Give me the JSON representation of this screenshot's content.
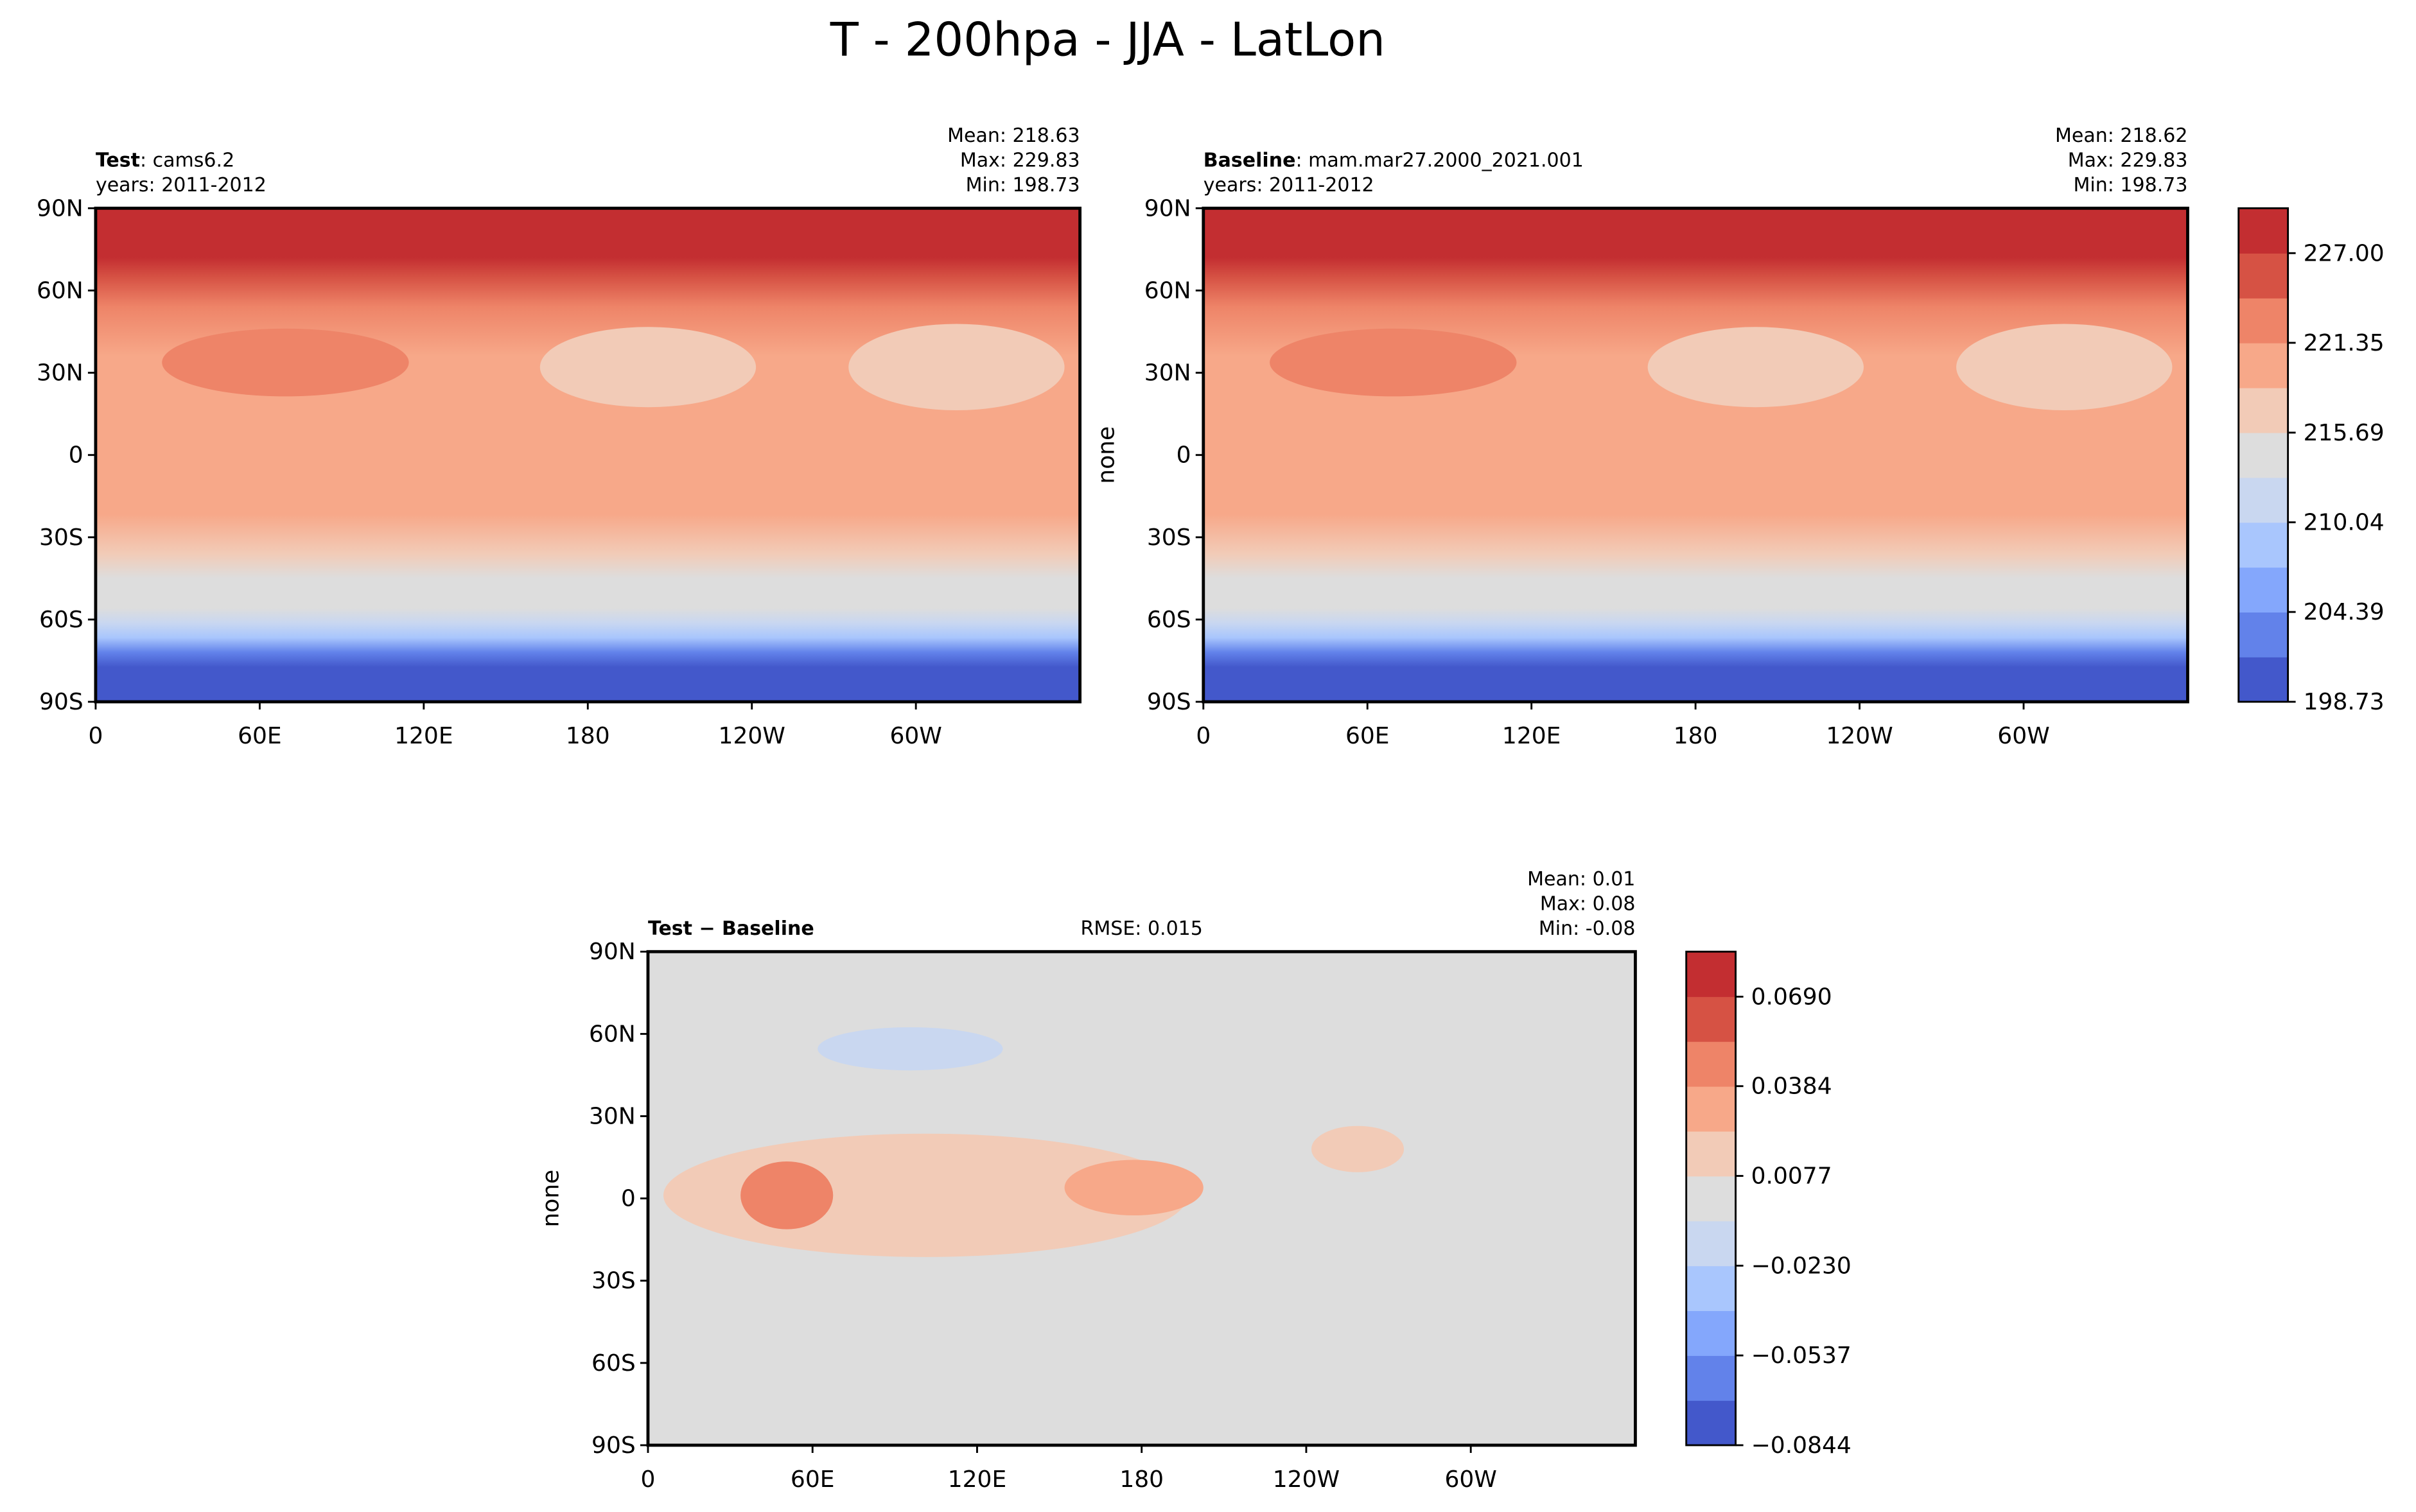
{
  "figure_title": "T - 200hpa - JJA - LatLon",
  "chart_data": [
    {
      "type": "contour",
      "title_bold": "Test",
      "title_rest": ": cams6.2",
      "subtitle": "years: 2011-2012",
      "stats": [
        "Mean: 218.63",
        "Max: 229.83",
        "Min: 198.73"
      ],
      "xlim": [
        0,
        360
      ],
      "xticks": [
        0,
        {
          "value": 60,
          "label": "60E"
        },
        {
          "value": 120,
          "label": "120E"
        },
        180,
        {
          "value": 240,
          "label": "120W"
        },
        {
          "value": 300,
          "label": "60W"
        }
      ],
      "ylim": [
        -90,
        90
      ],
      "yticks": [
        {
          "value": -90,
          "label": "90S"
        },
        {
          "value": -60,
          "label": "60S"
        },
        {
          "value": -30,
          "label": "30S"
        },
        0,
        {
          "value": 30,
          "label": "30N"
        },
        {
          "value": 60,
          "label": "60N"
        },
        {
          "value": 90,
          "label": "90N"
        }
      ]
    },
    {
      "type": "contour",
      "title_bold": "Baseline",
      "title_rest": ": mam.mar27.2000_2021.001",
      "subtitle": "years: 2011-2012",
      "stats": [
        "Mean: 218.62",
        "Max: 229.83",
        "Min: 198.73"
      ],
      "ylabel": "none",
      "xlim": [
        0,
        360
      ],
      "xticks": [
        0,
        {
          "value": 60,
          "label": "60E"
        },
        {
          "value": 120,
          "label": "120E"
        },
        180,
        {
          "value": 240,
          "label": "120W"
        },
        {
          "value": 300,
          "label": "60W"
        }
      ],
      "ylim": [
        -90,
        90
      ],
      "yticks": [
        {
          "value": -90,
          "label": "90S"
        },
        {
          "value": -60,
          "label": "60S"
        },
        {
          "value": -30,
          "label": "30S"
        },
        0,
        {
          "value": 30,
          "label": "30N"
        },
        {
          "value": 60,
          "label": "60N"
        },
        {
          "value": 90,
          "label": "90N"
        }
      ],
      "colorbar": {
        "lim": [
          198.73,
          229.83
        ],
        "ticks": [
          198.73,
          204.39,
          210.04,
          215.69,
          221.35,
          {
            "value": 227.0,
            "label": "227.00"
          }
        ],
        "colors": [
          "#4358cb",
          "#6282ea",
          "#84a7fc",
          "#a9c6fd",
          "#c9d7f0",
          "#dddddd",
          "#f2cbb7",
          "#f7a889",
          "#ee8468",
          "#d65244",
          "#c32e31"
        ]
      }
    },
    {
      "type": "contour",
      "title_bold": "Test − Baseline",
      "center_text": "RMSE: 0.015",
      "stats": [
        "Mean:  0.01",
        "Max:  0.08",
        "Min: -0.08"
      ],
      "ylabel": "none",
      "xlim": [
        0,
        360
      ],
      "xticks": [
        0,
        {
          "value": 60,
          "label": "60E"
        },
        {
          "value": 120,
          "label": "120E"
        },
        180,
        {
          "value": 240,
          "label": "120W"
        },
        {
          "value": 300,
          "label": "60W"
        }
      ],
      "ylim": [
        -90,
        90
      ],
      "yticks": [
        {
          "value": -90,
          "label": "90S"
        },
        {
          "value": -60,
          "label": "60S"
        },
        {
          "value": -30,
          "label": "30S"
        },
        0,
        {
          "value": 30,
          "label": "30N"
        },
        {
          "value": 60,
          "label": "60N"
        },
        {
          "value": 90,
          "label": "90N"
        }
      ],
      "colorbar": {
        "lim": [
          -0.0844,
          0.0844
        ],
        "ticks": [
          {
            "value": -0.0844,
            "label": "−0.0844"
          },
          {
            "value": -0.0537,
            "label": "−0.0537"
          },
          {
            "value": -0.023,
            "label": "−0.0230"
          },
          0.0077,
          0.0384,
          {
            "value": 0.069,
            "label": "0.0690"
          }
        ],
        "colors": [
          "#4358cb",
          "#6282ea",
          "#84a7fc",
          "#a9c6fd",
          "#c9d7f0",
          "#dddddd",
          "#f2cbb7",
          "#f7a889",
          "#ee8468",
          "#d65244",
          "#c32e31"
        ]
      }
    }
  ]
}
